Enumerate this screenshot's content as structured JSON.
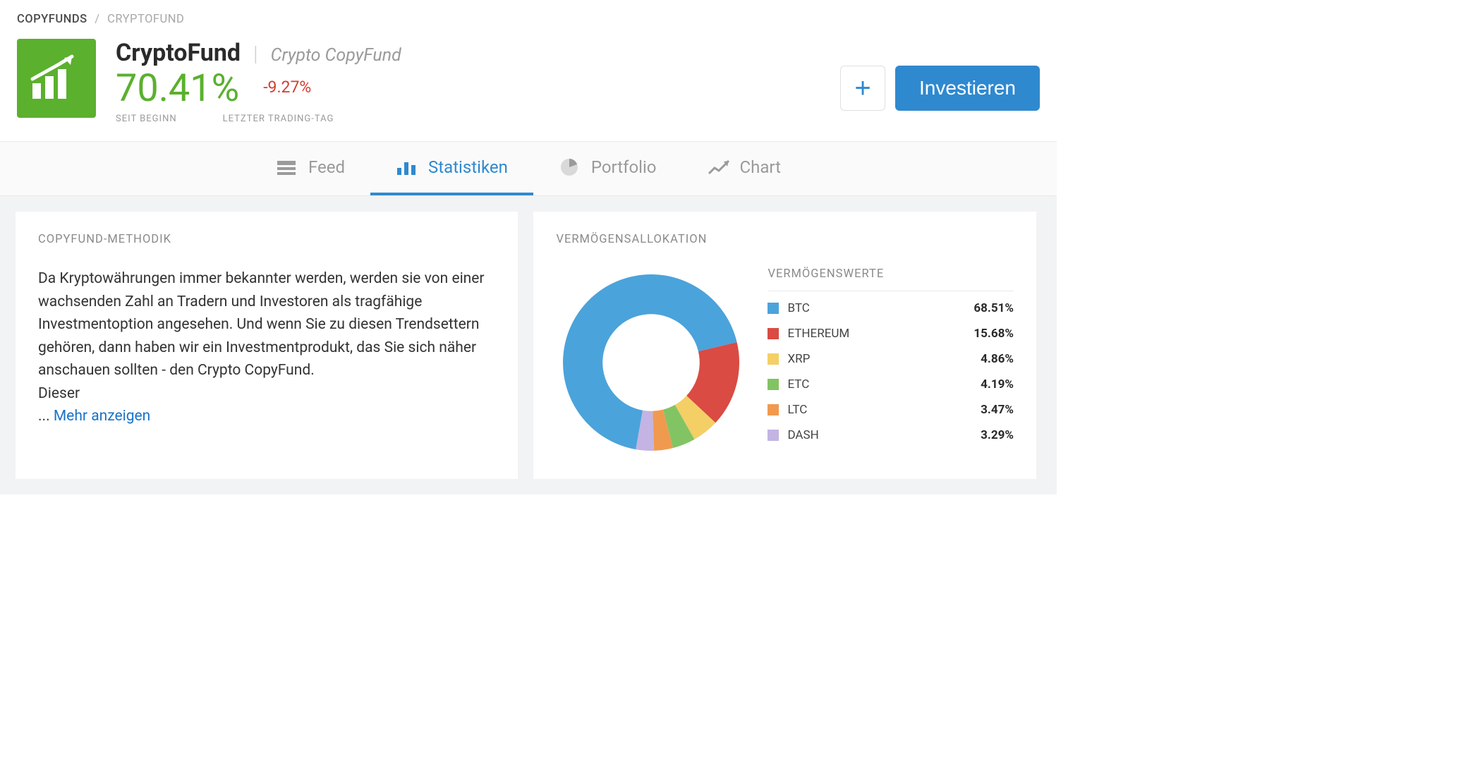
{
  "breadcrumb": {
    "root": "COPYFUNDS",
    "leaf": "CRYPTOFUND"
  },
  "header": {
    "title": "CryptoFund",
    "subtitle": "Crypto CopyFund",
    "return_total": "70.41%",
    "return_total_color": "#5bb02e",
    "return_day": "-9.27%",
    "return_day_color": "#d63b30",
    "label_total": "SEIT BEGINN",
    "label_day": "LETZTER TRADING-TAG",
    "invest_label": "Investieren",
    "icon_bg": "#5bb02e"
  },
  "tabs": {
    "items": [
      {
        "id": "feed",
        "label": "Feed",
        "active": false
      },
      {
        "id": "stats",
        "label": "Statistiken",
        "active": true
      },
      {
        "id": "portfolio",
        "label": "Portfolio",
        "active": false
      },
      {
        "id": "chart",
        "label": "Chart",
        "active": false
      }
    ],
    "active_color": "#2f89cf",
    "inactive_color": "#9a9a9a"
  },
  "methodology": {
    "title": "COPYFUND-METHODIK",
    "body": "Da Kryptowährungen immer bekannter werden, werden sie von einer wachsenden Zahl an Tradern und Investoren als tragfähige Investmentoption angesehen. Und wenn Sie zu diesen Trendsettern gehören, dann haben wir ein Investmentprodukt, das Sie sich näher anschauen sollten - den Crypto CopyFund.",
    "body_tail": "Dieser",
    "ellipsis": "...",
    "show_more": "Mehr anzeigen"
  },
  "allocation": {
    "title": "VERMÖGENSALLOKATION",
    "legend_title": "VERMÖGENSWERTE",
    "donut": {
      "type": "donut",
      "inner_radius_ratio": 0.55,
      "rotation_deg": 100,
      "background_color": "#ffffff"
    },
    "assets": [
      {
        "name": "BTC",
        "pct": 68.51,
        "color": "#4ba3db"
      },
      {
        "name": "ETHEREUM",
        "pct": 15.68,
        "color": "#d94b43"
      },
      {
        "name": "XRP",
        "pct": 4.86,
        "color": "#f3cf66"
      },
      {
        "name": "ETC",
        "pct": 4.19,
        "color": "#82c463"
      },
      {
        "name": "LTC",
        "pct": 3.47,
        "color": "#f09a4f"
      },
      {
        "name": "DASH",
        "pct": 3.29,
        "color": "#c3b4e3"
      }
    ]
  }
}
